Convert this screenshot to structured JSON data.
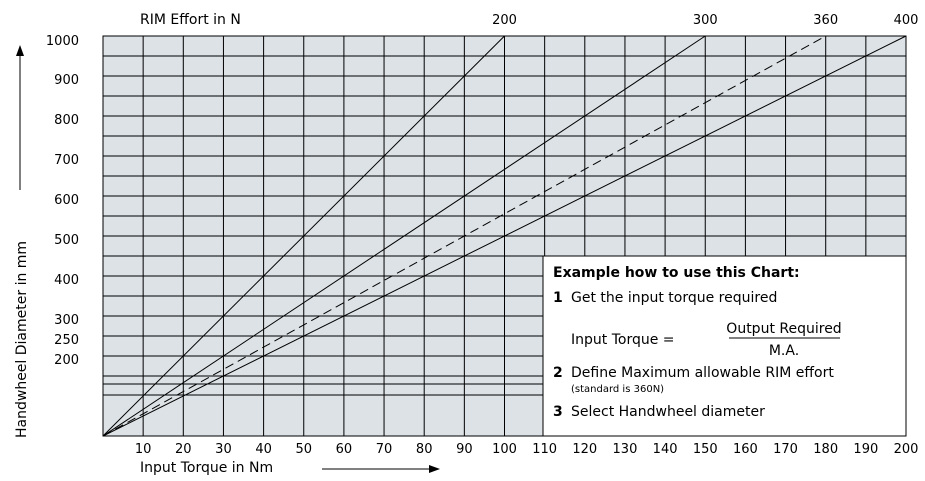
{
  "chart_data": {
    "type": "line",
    "x_axis": {
      "label": "Input Torque in Nm",
      "range": [
        0,
        200
      ],
      "ticks": [
        "10",
        "20",
        "30",
        "40",
        "50",
        "60",
        "70",
        "80",
        "90",
        "100",
        "110",
        "120",
        "130",
        "140",
        "150",
        "160",
        "170",
        "180",
        "190",
        "200"
      ]
    },
    "y_axis": {
      "label": "Handwheel Diameter in mm",
      "ticks": [
        {
          "label": "1000",
          "value": 1000
        },
        {
          "label": "900",
          "value": 900
        },
        {
          "label": "800",
          "value": 800
        },
        {
          "label": "700",
          "value": 700
        },
        {
          "label": "600",
          "value": 600
        },
        {
          "label": "500",
          "value": 500
        },
        {
          "label": "400",
          "value": 400
        },
        {
          "label": "300",
          "value": 300
        },
        {
          "label": "250",
          "value": 250
        },
        {
          "label": "200",
          "value": 200
        }
      ]
    },
    "top_axis": {
      "label": "RIM Effort in N",
      "ticks": [
        "200",
        "300",
        "360",
        "400"
      ]
    },
    "series": [
      {
        "name": "200",
        "style": "solid",
        "x": [
          0,
          100
        ],
        "y": [
          0,
          1000
        ]
      },
      {
        "name": "300",
        "style": "solid",
        "x": [
          0,
          150
        ],
        "y": [
          0,
          1000
        ]
      },
      {
        "name": "360",
        "style": "dashed",
        "x": [
          0,
          180
        ],
        "y": [
          0,
          1000
        ]
      },
      {
        "name": "400",
        "style": "solid",
        "x": [
          0,
          200
        ],
        "y": [
          0,
          1000
        ]
      }
    ],
    "grid": true,
    "colors": {
      "background": "#dde2e6",
      "grid": "#000000",
      "lines": "#000000"
    }
  },
  "example_box": {
    "title": "Example how to use this Chart:",
    "steps": [
      {
        "num": "1",
        "text": "Get the input torque required"
      },
      {
        "num": "2",
        "text": "Define Maximum allowable RIM effort"
      },
      {
        "num": "3",
        "text": "Select Handwheel diameter"
      }
    ],
    "formula_label": "Input Torque =",
    "formula_numerator": "Output Required",
    "formula_denominator": "M.A.",
    "note": "(standard is 360N)"
  }
}
